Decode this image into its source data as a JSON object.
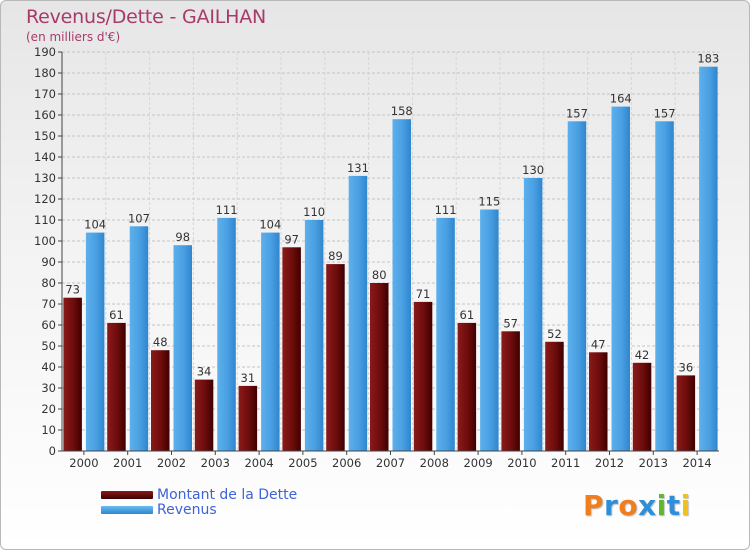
{
  "title": "Revenus/Dette - GAILHAN",
  "subtitle": "(en milliers d'€)",
  "legend": [
    {
      "label": "Montant de la Dette",
      "color": "#7a1010"
    },
    {
      "label": "Revenus",
      "color": "#4aa2e4"
    }
  ],
  "logo": {
    "letters": [
      "P",
      "r",
      "o",
      "x",
      "i",
      "t",
      "i"
    ],
    "colors": [
      "#f07d1e",
      "#2e8fd8",
      "#f07d1e",
      "#2e8fd8",
      "#5eb82e",
      "#2e8fd8",
      "#f0c020"
    ]
  },
  "chart_data": {
    "type": "bar",
    "categories": [
      "2000",
      "2001",
      "2002",
      "2003",
      "2004",
      "2005",
      "2006",
      "2007",
      "2008",
      "2009",
      "2010",
      "2011",
      "2012",
      "2013",
      "2014"
    ],
    "series": [
      {
        "name": "Montant de la Dette",
        "color": "#7a1010",
        "values": [
          73,
          61,
          48,
          34,
          31,
          97,
          89,
          80,
          71,
          61,
          57,
          52,
          47,
          42,
          36
        ]
      },
      {
        "name": "Revenus",
        "color": "#4aa2e4",
        "values": [
          104,
          107,
          98,
          111,
          104,
          110,
          131,
          158,
          111,
          115,
          130,
          157,
          164,
          157,
          183
        ]
      }
    ],
    "ylim": [
      0,
      190
    ],
    "yticks": [
      0,
      10,
      20,
      30,
      40,
      50,
      60,
      70,
      80,
      90,
      100,
      110,
      120,
      130,
      140,
      150,
      160,
      170,
      180,
      190
    ],
    "grid": true,
    "legend_position": "bottom-left"
  }
}
